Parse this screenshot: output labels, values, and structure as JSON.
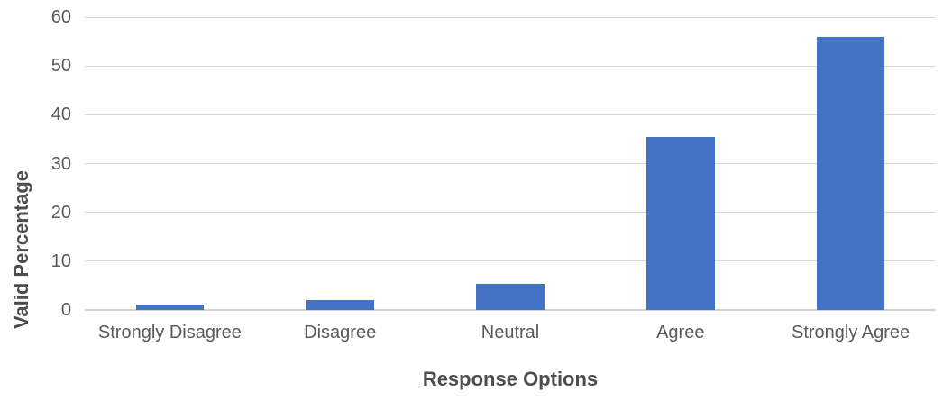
{
  "chart_data": {
    "type": "bar",
    "title": "",
    "categories": [
      "Strongly Disagree",
      "Disagree",
      "Neutral",
      "Agree",
      "Strongly Agree"
    ],
    "values": [
      1.1,
      2.1,
      5.3,
      35.5,
      56.0
    ],
    "xlabel": "Response Options",
    "ylabel": "Valid Percentage",
    "ylim": [
      0,
      60
    ],
    "yticks": [
      0,
      10,
      20,
      30,
      40,
      50,
      60
    ],
    "grid": true,
    "legend": false,
    "bar_color": "#4472C4",
    "gridline_color": "#D9D9D9",
    "baseline_color": "#D2D2D2",
    "tick_label_color": "#595959",
    "axis_title_color": "#4D4D4D"
  }
}
